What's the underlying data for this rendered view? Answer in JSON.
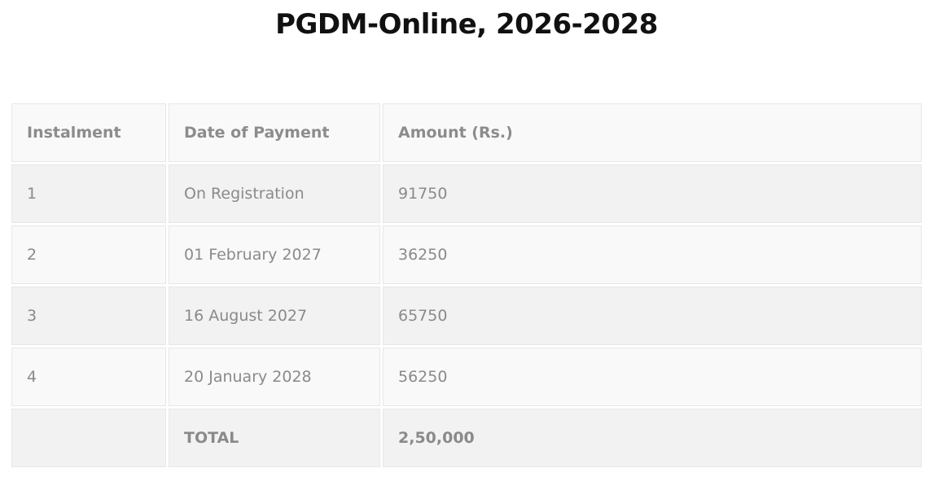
{
  "title": "PGDM-Online, 2026-2028",
  "table": {
    "headers": [
      "Instalment",
      "Date of Payment",
      "Amount (Rs.)"
    ],
    "rows": [
      [
        "1",
        "On Registration",
        "91750"
      ],
      [
        "2",
        "01 February 2027",
        "36250"
      ],
      [
        "3",
        "16 August 2027",
        "65750"
      ],
      [
        "4",
        "20 January 2028",
        "56250"
      ]
    ],
    "total": [
      "",
      "TOTAL",
      "2,50,000"
    ]
  }
}
